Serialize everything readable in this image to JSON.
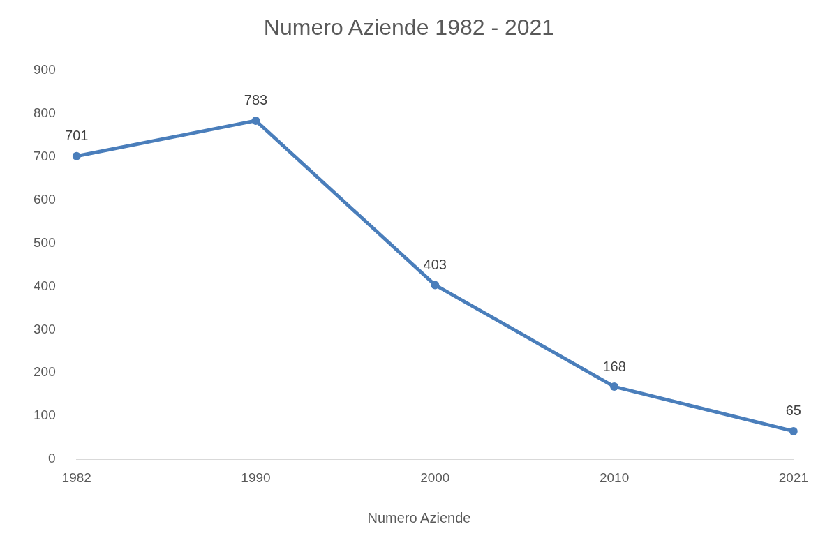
{
  "chart_data": {
    "type": "line",
    "title": "Numero Aziende 1982 - 2021",
    "categories": [
      "1982",
      "1990",
      "2000",
      "2010",
      "2021"
    ],
    "series": [
      {
        "name": "Numero Aziende",
        "color": "#4a7ebb",
        "values": [
          701,
          783,
          403,
          168,
          65
        ]
      }
    ],
    "ylim": [
      0,
      900
    ],
    "yticks": [
      0,
      100,
      200,
      300,
      400,
      500,
      600,
      700,
      800,
      900
    ],
    "grid": false,
    "legend": "bottom",
    "data_labels": true,
    "marker": "circle",
    "line_style": "solid"
  }
}
